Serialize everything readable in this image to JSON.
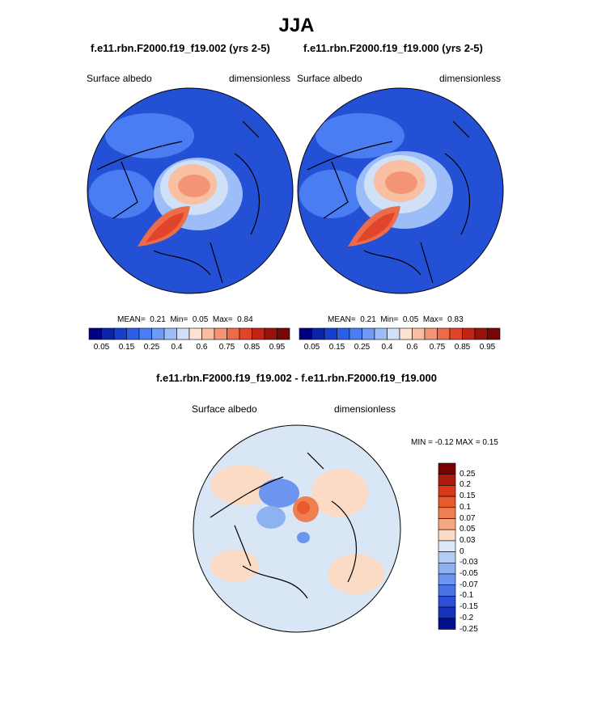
{
  "page": {
    "title": "JJA",
    "diff_title": "f.e11.rbn.F2000.f19_f19.002 - f.e11.rbn.F2000.f19_f19.000"
  },
  "panels": [
    {
      "subtitle": "f.e11.rbn.F2000.f19_f19.002 (yrs 2-5)",
      "left_label": "Surface albedo",
      "right_label": "dimensionless",
      "stats": {
        "mean_label": "MEAN=",
        "mean": "0.21",
        "min_label": "Min=",
        "min": "0.05",
        "max_label": "Max=",
        "max": "0.84"
      }
    },
    {
      "subtitle": "f.e11.rbn.F2000.f19_f19.000 (yrs 2-5)",
      "left_label": "Surface albedo",
      "right_label": "dimensionless",
      "stats": {
        "mean_label": "MEAN=",
        "mean": "0.21",
        "min_label": "Min=",
        "min": "0.05",
        "max_label": "Max=",
        "max": "0.83"
      }
    }
  ],
  "diff_panel": {
    "left_label": "Surface albedo",
    "right_label": "dimensionless",
    "minmax_text": "MIN =  -0.12 MAX =   0.15"
  },
  "chart_data": [
    {
      "type": "heatmap",
      "projection": "north polar stereographic",
      "title": "f.e11.rbn.F2000.f19_f19.002 (yrs 2-5)",
      "variable": "Surface albedo",
      "units": "dimensionless",
      "mean": 0.21,
      "min": 0.05,
      "max": 0.84,
      "colorbar_levels": [
        0.05,
        0.1,
        0.15,
        0.2,
        0.25,
        0.3,
        0.4,
        0.5,
        0.6,
        0.7,
        0.75,
        0.8,
        0.85,
        0.9,
        0.95
      ],
      "colorbar_labels": [
        "0.05",
        "0.15",
        "0.25",
        "0.4",
        "0.6",
        "0.75",
        "0.85",
        "0.95"
      ]
    },
    {
      "type": "heatmap",
      "projection": "north polar stereographic",
      "title": "f.e11.rbn.F2000.f19_f19.000 (yrs 2-5)",
      "variable": "Surface albedo",
      "units": "dimensionless",
      "mean": 0.21,
      "min": 0.05,
      "max": 0.83,
      "colorbar_levels": [
        0.05,
        0.1,
        0.15,
        0.2,
        0.25,
        0.3,
        0.4,
        0.5,
        0.6,
        0.7,
        0.75,
        0.8,
        0.85,
        0.9,
        0.95
      ],
      "colorbar_labels": [
        "0.05",
        "0.15",
        "0.25",
        "0.4",
        "0.6",
        "0.75",
        "0.85",
        "0.95"
      ]
    },
    {
      "type": "heatmap",
      "projection": "north polar stereographic",
      "title": "f.e11.rbn.F2000.f19_f19.002 - f.e11.rbn.F2000.f19_f19.000",
      "variable": "Surface albedo",
      "units": "dimensionless",
      "min": -0.12,
      "max": 0.15,
      "colorbar_labels": [
        "0.25",
        "0.2",
        "0.15",
        "0.1",
        "0.07",
        "0.05",
        "0.03",
        "0",
        "-0.03",
        "-0.05",
        "-0.07",
        "-0.1",
        "-0.15",
        "-0.2",
        "-0.25"
      ]
    }
  ],
  "colors": {
    "seq": [
      "#00007f",
      "#0a23a8",
      "#1640cc",
      "#2d5fe6",
      "#4a7df2",
      "#6f9af7",
      "#9cbdf8",
      "#cfe0f7",
      "#fde2d4",
      "#f9bfa2",
      "#f39574",
      "#ec6b49",
      "#e0442b",
      "#c42416",
      "#99110b",
      "#750706"
    ],
    "div": [
      "#7a0000",
      "#ad1b0d",
      "#d63a1a",
      "#e85a2c",
      "#ee7f52",
      "#f4a882",
      "#fbdbc6",
      "#dbe7f6",
      "#b4cdf4",
      "#8eb1f2",
      "#6c95ef",
      "#4a74e4",
      "#2c4fd6",
      "#1533bb",
      "#000f8f"
    ],
    "map_ocean_seq": "#2450d6",
    "map_ocean_div": "#d8e6f5"
  }
}
